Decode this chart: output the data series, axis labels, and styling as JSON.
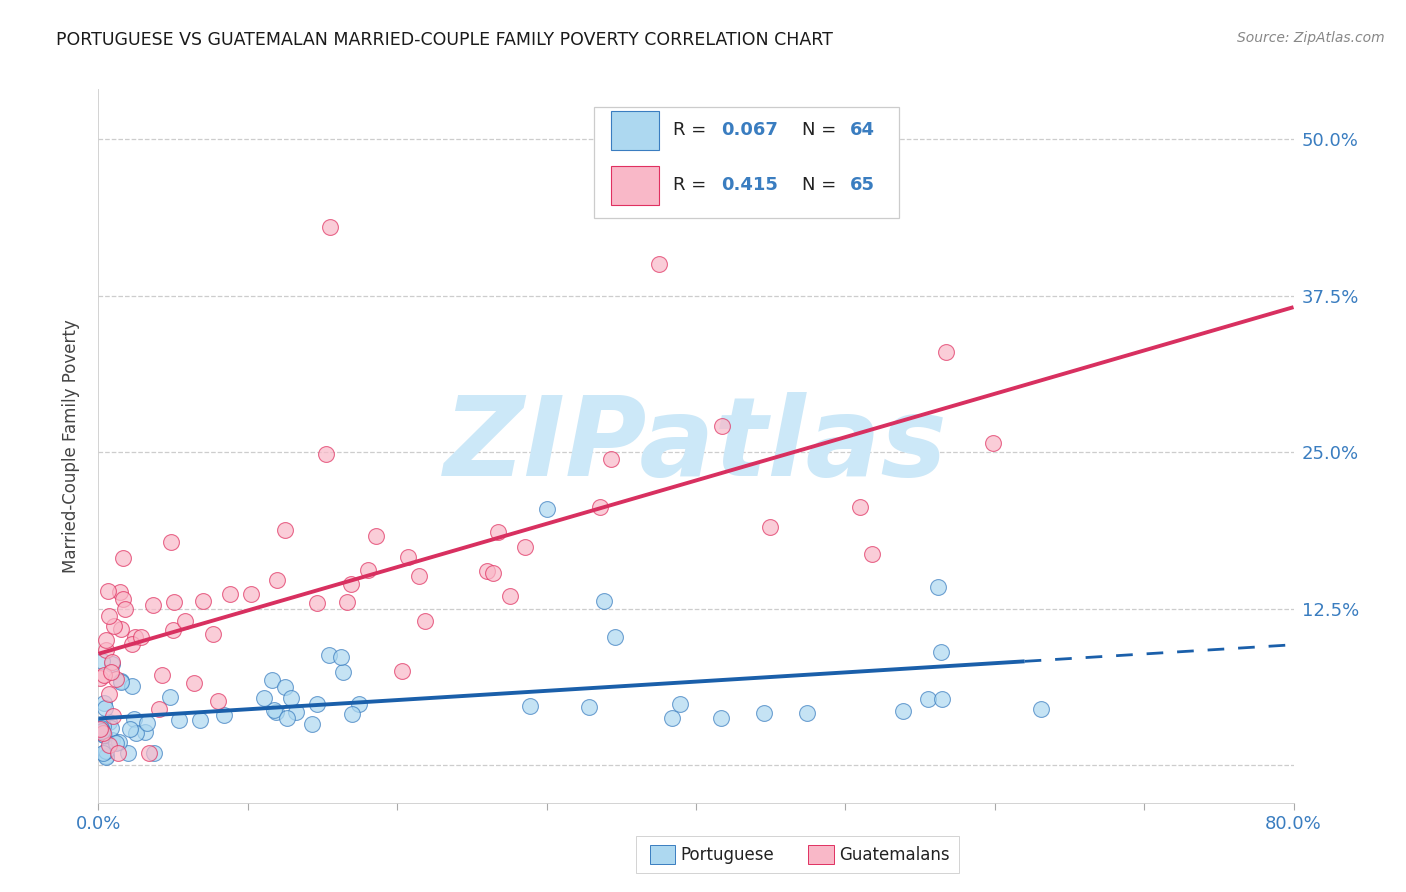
{
  "title": "PORTUGUESE VS GUATEMALAN MARRIED-COUPLE FAMILY POVERTY CORRELATION CHART",
  "source": "Source: ZipAtlas.com",
  "ylabel": "Married-Couple Family Poverty",
  "xlim": [
    0.0,
    0.8
  ],
  "ylim": [
    -0.03,
    0.54
  ],
  "portuguese_R": 0.067,
  "portuguese_N": 64,
  "guatemalan_R": 0.415,
  "guatemalan_N": 65,
  "portuguese_color": "#add8f0",
  "guatemalan_color": "#f9b8c8",
  "portuguese_edge_color": "#3a7dc0",
  "guatemalan_edge_color": "#e03060",
  "portuguese_line_color": "#1a5faa",
  "guatemalan_line_color": "#d83060",
  "grid_color": "#c8c8c8",
  "background_color": "#ffffff",
  "watermark_color": "#cce8f8",
  "ytick_vals": [
    0.0,
    0.125,
    0.25,
    0.375,
    0.5
  ],
  "ytick_labels": [
    "",
    "12.5%",
    "25.0%",
    "37.5%",
    "50.0%"
  ],
  "right_axis_color": "#3a7dc0",
  "title_color": "#1a1a1a",
  "source_color": "#888888"
}
